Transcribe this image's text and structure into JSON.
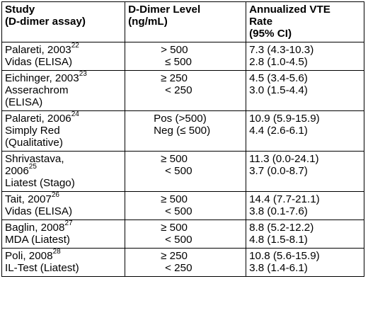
{
  "headers": {
    "study": [
      "Study",
      "(D-dimer assay)"
    ],
    "level": [
      "D-Dimer Level",
      "(ng/mL)"
    ],
    "rate": [
      "Annualized VTE",
      "Rate",
      "(95% CI)"
    ]
  },
  "rows": [
    {
      "study_name": "Palareti, 2003",
      "ref": "22",
      "assay": [
        "Vidas (ELISA)"
      ],
      "levels": [
        "> 500",
        "≤ 500"
      ],
      "rates": [
        "7.3 (4.3-10.3)",
        "2.8 (1.0-4.5)"
      ]
    },
    {
      "study_name": "Eichinger, 2003",
      "ref": "23",
      "assay": [
        "Asserachrom",
        "(ELISA)"
      ],
      "levels": [
        "≥ 250",
        "< 250"
      ],
      "rates": [
        "4.5 (3.4-5.6)",
        "3.0 (1.5-4.4)"
      ]
    },
    {
      "study_name": "Palareti, 2006",
      "ref": "24",
      "assay": [
        "Simply Red",
        "(Qualitative)"
      ],
      "levels": [
        "Pos (>500)",
        "Neg (≤ 500)"
      ],
      "rates": [
        "10.9 (5.9-15.9)",
        "4.4 (2.6-6.1)"
      ]
    },
    {
      "study_name": "Shrivastava,",
      "study_name2": "2006",
      "ref": "25",
      "assay": [
        "Liatest (Stago)"
      ],
      "levels": [
        "≥ 500",
        "< 500"
      ],
      "rates": [
        "11.3 (0.0-24.1)",
        "3.7 (0.0-8.7)"
      ]
    },
    {
      "study_name": "Tait, 2007",
      "ref": "26",
      "assay": [
        "Vidas (ELISA)"
      ],
      "levels": [
        "≥ 500",
        "< 500"
      ],
      "rates": [
        "14.4 (7.7-21.1)",
        "3.8 (0.1-7.6)"
      ]
    },
    {
      "study_name": "Baglin, 2008",
      "ref": "27",
      "assay": [
        "MDA (Liatest)"
      ],
      "levels": [
        "≥ 500",
        "< 500"
      ],
      "rates": [
        "8.8 (5.2-12.2)",
        "4.8 (1.5-8.1)"
      ]
    },
    {
      "study_name": "Poli, 2008",
      "ref": "28",
      "assay": [
        "IL-Test (Liatest)"
      ],
      "levels": [
        "≥ 250",
        "< 250"
      ],
      "rates": [
        "10.8 (5.6-15.9)",
        "3.8 (1.4-6.1)"
      ]
    }
  ]
}
